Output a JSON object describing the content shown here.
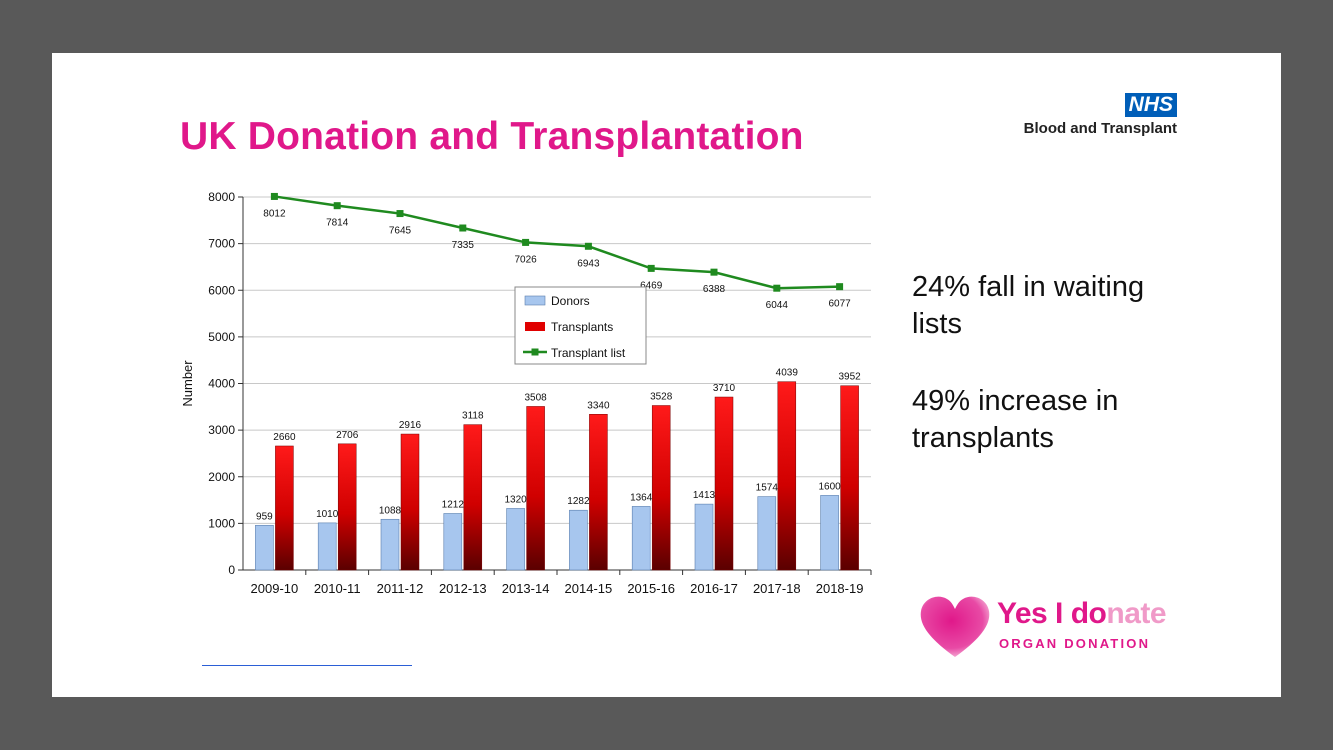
{
  "slide": {
    "title": "UK Donation and Transplantation",
    "nhs_badge": "NHS",
    "nhs_sub": "Blood and Transplant",
    "stat1": "24% fall in waiting lists",
    "stat2": "49% increase in transplants",
    "logo_main_dark": "Yes I do",
    "logo_main_light": "nate",
    "logo_sub": "ORGAN DONATION"
  },
  "chart_data": {
    "type": "bar",
    "categories": [
      "2009-10",
      "2010-11",
      "2011-12",
      "2012-13",
      "2013-14",
      "2014-15",
      "2015-16",
      "2016-17",
      "2017-18",
      "2018-19"
    ],
    "series": [
      {
        "name": "Donors",
        "type": "bar",
        "color": "#a7c6ee",
        "values": [
          959,
          1010,
          1088,
          1212,
          1320,
          1282,
          1364,
          1413,
          1574,
          1600
        ]
      },
      {
        "name": "Transplants",
        "type": "bar",
        "color": "#e00000",
        "values": [
          2660,
          2706,
          2916,
          3118,
          3508,
          3340,
          3528,
          3710,
          4039,
          3952
        ]
      },
      {
        "name": "Transplant list",
        "type": "line",
        "color": "#1f8a1f",
        "values": [
          8012,
          7814,
          7645,
          7335,
          7026,
          6943,
          6469,
          6388,
          6044,
          6077
        ]
      }
    ],
    "ylabel": "Number",
    "xlabel": "",
    "ylim": [
      0,
      8000
    ],
    "yticks": [
      0,
      1000,
      2000,
      3000,
      4000,
      5000,
      6000,
      7000,
      8000
    ],
    "grid": true,
    "legend_position": "center"
  }
}
